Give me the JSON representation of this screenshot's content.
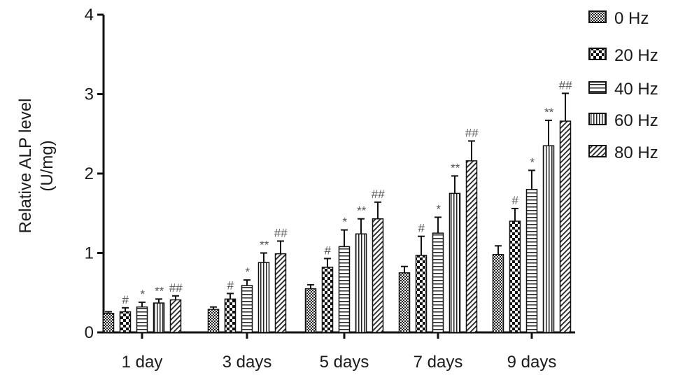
{
  "chart_data": {
    "type": "bar",
    "title": "",
    "ylabel_lines": [
      "Relative ALP level",
      "(U/mg)"
    ],
    "xlabel": "",
    "ylim": [
      0,
      4
    ],
    "yticks": [
      "0",
      "1",
      "2",
      "3",
      "4"
    ],
    "categories": [
      "1 day",
      "3 days",
      "5 days",
      "7 days",
      "9 days"
    ],
    "series": [
      {
        "name": "0 Hz",
        "pattern": "dots",
        "values": [
          0.24,
          0.29,
          0.55,
          0.75,
          0.98
        ],
        "errors": [
          0.02,
          0.03,
          0.05,
          0.08,
          0.11
        ],
        "annotations": [
          "",
          "",
          "",
          "",
          ""
        ]
      },
      {
        "name": "20 Hz",
        "pattern": "checker",
        "values": [
          0.26,
          0.42,
          0.82,
          0.97,
          1.4
        ],
        "errors": [
          0.05,
          0.07,
          0.11,
          0.24,
          0.16
        ],
        "annotations": [
          "#",
          "#",
          "#",
          "#",
          "#"
        ]
      },
      {
        "name": "40 Hz",
        "pattern": "horizontal",
        "values": [
          0.32,
          0.59,
          1.08,
          1.25,
          1.8
        ],
        "errors": [
          0.06,
          0.07,
          0.21,
          0.2,
          0.24
        ],
        "annotations": [
          "*",
          "*",
          "*",
          "*",
          "*"
        ]
      },
      {
        "name": "60 Hz",
        "pattern": "vertical",
        "values": [
          0.37,
          0.88,
          1.24,
          1.75,
          2.35
        ],
        "errors": [
          0.05,
          0.12,
          0.19,
          0.22,
          0.32
        ],
        "annotations": [
          "**",
          "**",
          "**",
          "**",
          "**"
        ]
      },
      {
        "name": "80 Hz",
        "pattern": "diagonal",
        "values": [
          0.41,
          0.99,
          1.43,
          2.16,
          2.66
        ],
        "errors": [
          0.05,
          0.16,
          0.21,
          0.25,
          0.35
        ],
        "annotations": [
          "##",
          "##",
          "##",
          "##",
          "##"
        ]
      }
    ],
    "grid": false,
    "legend_position": "top-right",
    "colors": {
      "bar_stroke": "#111111",
      "axis": "#111111",
      "annotation": "#555555"
    }
  }
}
